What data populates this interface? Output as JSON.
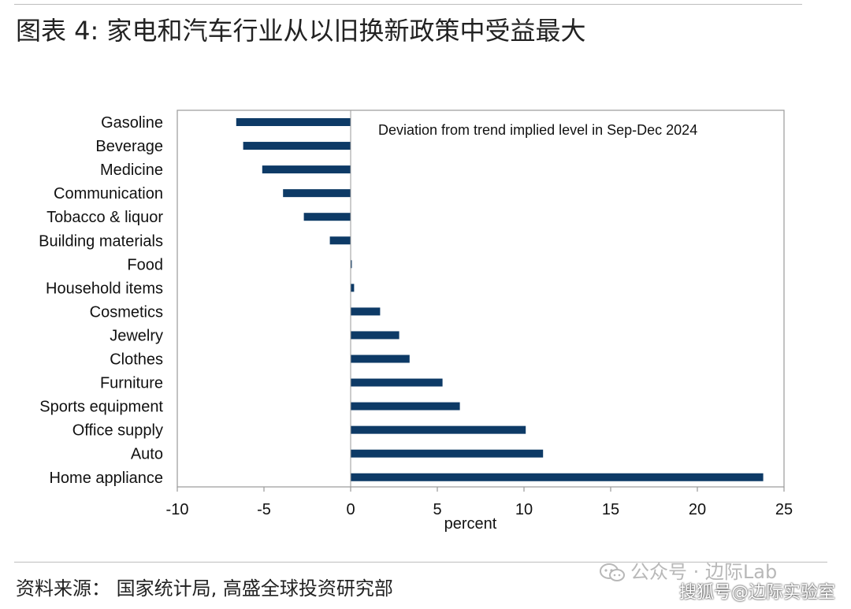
{
  "title": "图表 4: 家电和汽车行业从以旧换新政策中受益最大",
  "source": "资料来源：  国家统计局, 高盛全球投资研究部",
  "watermark": {
    "text": "公众号 · 边际Lab",
    "text2": "搜狐号@边际实验室",
    "icon": "wechat-icon"
  },
  "chart_data": {
    "type": "bar",
    "orientation": "horizontal",
    "annotation": "Deviation from trend implied level in Sep-Dec 2024",
    "xlabel": "percent",
    "ylabel": "",
    "xlim": [
      -10,
      25
    ],
    "xticks": [
      -10,
      -5,
      0,
      5,
      10,
      15,
      20,
      25
    ],
    "grid": false,
    "bar_color": "#0d3a66",
    "categories": [
      "Gasoline",
      "Beverage",
      "Medicine",
      "Communication",
      "Tobacco & liquor",
      "Building materials",
      "Food",
      "Household items",
      "Cosmetics",
      "Jewelry",
      "Clothes",
      "Furniture",
      "Sports equipment",
      "Office supply",
      "Auto",
      "Home appliance"
    ],
    "values": [
      -6.6,
      -6.2,
      -5.1,
      -3.9,
      -2.7,
      -1.2,
      0.05,
      0.2,
      1.7,
      2.8,
      3.4,
      5.3,
      6.3,
      10.1,
      11.1,
      23.8
    ]
  }
}
